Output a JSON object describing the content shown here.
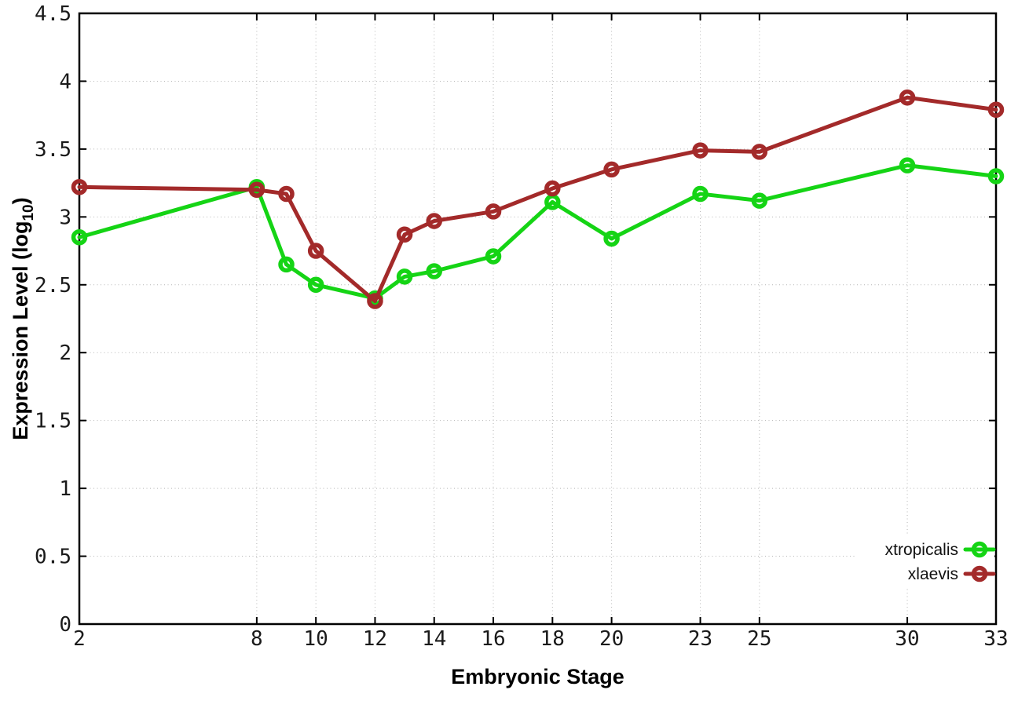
{
  "chart_data": {
    "type": "line",
    "title": "",
    "xlabel": "Embryonic Stage",
    "ylabel_parts": [
      {
        "text": "Expression Level (log",
        "sub": false
      },
      {
        "text": "10",
        "sub": true
      },
      {
        "text": ")",
        "sub": false
      }
    ],
    "x": [
      2,
      8,
      9,
      10,
      12,
      13,
      14,
      16,
      18,
      20,
      23,
      25,
      30,
      33
    ],
    "x_ticks": [
      2,
      8,
      10,
      12,
      14,
      16,
      18,
      20,
      23,
      25,
      30,
      33
    ],
    "y_ticks": [
      0,
      0.5,
      1,
      1.5,
      2,
      2.5,
      3,
      3.5,
      4,
      4.5
    ],
    "xlim": [
      2,
      33
    ],
    "ylim": [
      0,
      4.5
    ],
    "grid": true,
    "legend_position": "bottom-right",
    "series": [
      {
        "name": "xtropicalis",
        "color": "#15d415",
        "values": [
          2.85,
          3.22,
          2.65,
          2.5,
          2.4,
          2.56,
          2.6,
          2.71,
          3.11,
          2.84,
          3.17,
          3.12,
          3.38,
          3.3
        ]
      },
      {
        "name": "xlaevis",
        "color": "#a32a2a",
        "values": [
          3.22,
          3.2,
          3.17,
          2.75,
          2.38,
          2.87,
          2.97,
          3.04,
          3.21,
          3.35,
          3.49,
          3.48,
          3.88,
          3.79
        ]
      }
    ],
    "style": {
      "border_color": "#000000",
      "grid_color": "#b5b5b5",
      "tick_color": "#000000",
      "background": "#ffffff"
    }
  }
}
